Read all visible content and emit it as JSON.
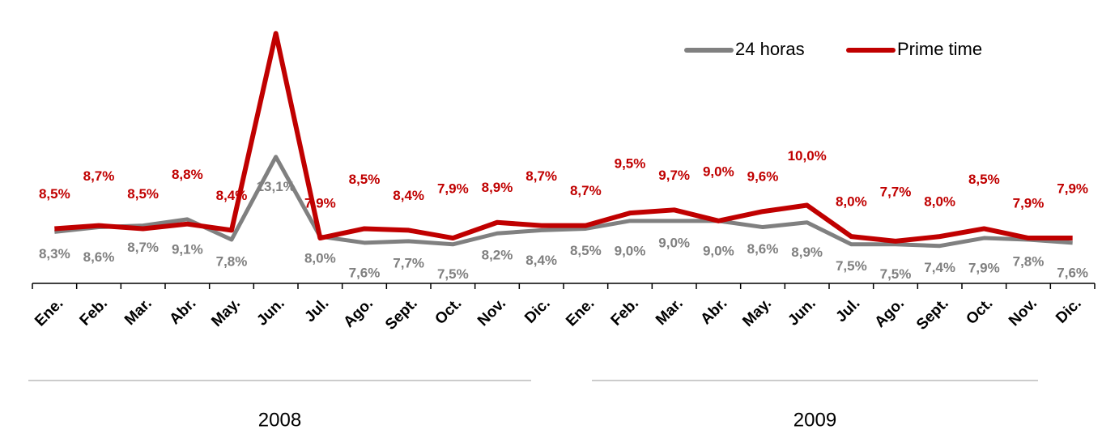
{
  "chart_data": {
    "type": "line",
    "categories": [
      "Ene.",
      "Feb.",
      "Mar.",
      "Abr.",
      "May.",
      "Jun.",
      "Jul.",
      "Ago.",
      "Sept.",
      "Oct.",
      "Nov.",
      "Dic.",
      "Ene.",
      "Feb.",
      "Mar.",
      "Abr.",
      "May.",
      "Jun.",
      "Jul.",
      "Ago.",
      "Sept.",
      "Oct.",
      "Nov.",
      "Dic."
    ],
    "groups": [
      "2008",
      "2009"
    ],
    "series": [
      {
        "name": "24 horas",
        "color": "#808080",
        "values": [
          8.3,
          8.6,
          8.7,
          9.1,
          7.8,
          13.1,
          8.0,
          7.6,
          7.7,
          7.5,
          8.2,
          8.4,
          8.5,
          9.0,
          9.0,
          9.0,
          8.6,
          8.9,
          7.5,
          7.5,
          7.4,
          7.9,
          7.8,
          7.6
        ],
        "value_labels": [
          "8,3%",
          "8,6%",
          "8,7%",
          "9,1%",
          "7,8%",
          "13,1%",
          "8,0%",
          "7,6%",
          "7,7%",
          "7,5%",
          "8,2%",
          "8,4%",
          "8,5%",
          "9,0%",
          "9,0%",
          "9,0%",
          "8,6%",
          "8,9%",
          "7,5%",
          "7,5%",
          "7,4%",
          "7,9%",
          "7,8%",
          "7,6%"
        ]
      },
      {
        "name": "Prime time",
        "color": "#c00000",
        "values": [
          8.5,
          8.7,
          8.5,
          8.8,
          8.4,
          21.0,
          7.9,
          8.5,
          8.4,
          7.9,
          8.9,
          8.7,
          8.7,
          9.5,
          9.7,
          9.0,
          9.6,
          10.0,
          8.0,
          7.7,
          8.0,
          8.5,
          7.9,
          7.9
        ],
        "value_labels": [
          "8,5%",
          "8,7%",
          "8,5%",
          "8,8%",
          "8,4%",
          "21,0%",
          "7,9%",
          "8,5%",
          "8,4%",
          "7,9%",
          "8,9%",
          "8,7%",
          "8,7%",
          "9,5%",
          "9,7%",
          "9,0%",
          "9,6%",
          "10,0%",
          "8,0%",
          "7,7%",
          "8,0%",
          "8,5%",
          "7,9%",
          "7,9%"
        ]
      }
    ],
    "ylim": [
      5,
      22
    ],
    "legend": "top-right"
  }
}
